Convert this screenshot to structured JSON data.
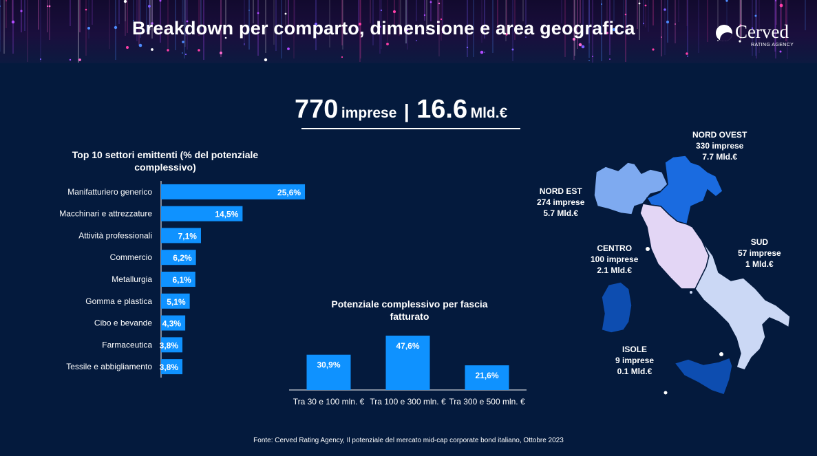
{
  "header": {
    "title": "Breakdown per comparto, dimensione e area  geografica"
  },
  "logo": {
    "name": "Cerved",
    "subtitle": "RATING AGENCY"
  },
  "headline": {
    "count": "770",
    "count_unit": "imprese",
    "separator": "|",
    "value": "16.6",
    "value_unit": "Mld.€"
  },
  "colors": {
    "background": "#041a3d",
    "bar": "#0f92ff",
    "map_dark": "#0d4db0",
    "map_mid": "#1a6be0",
    "map_light": "#7eaaf0",
    "map_pale": "#cbd8f5",
    "map_pink": "#e3d6f5"
  },
  "chart_data": [
    {
      "type": "bar",
      "orientation": "horizontal",
      "title": "Top 10 settori emittenti (% del potenziale complessivo)",
      "categories": [
        "Manifatturiero generico",
        "Macchinari e attrezzature",
        "Attività professionali",
        "Commercio",
        "Metallurgia",
        "Gomma e plastica",
        "Cibo e bevande",
        "Farmaceutica",
        "Tessile e abbigliamento"
      ],
      "values": [
        25.6,
        14.5,
        7.1,
        6.2,
        6.1,
        5.1,
        4.3,
        3.8,
        3.8
      ],
      "labels": [
        "25,6%",
        "14,5%",
        "7,1%",
        "6,2%",
        "6,1%",
        "5,1%",
        "4,3%",
        "3,8%",
        "3,8%"
      ],
      "xlim": [
        0,
        30
      ]
    },
    {
      "type": "bar",
      "orientation": "vertical",
      "title": "Potenziale complessivo per fascia fatturato",
      "categories": [
        "Tra 30 e 100 mln. €",
        "Tra 100 e 300 mln. €",
        "Tra 300 e 500 mln. €"
      ],
      "values": [
        30.9,
        47.6,
        21.6
      ],
      "labels": [
        "30,9%",
        "47,6%",
        "21,6%"
      ],
      "ylim": [
        0,
        50
      ]
    }
  ],
  "regions": [
    {
      "name": "NORD OVEST",
      "companies": "330 imprese",
      "value": "7.7 Mld.€"
    },
    {
      "name": "NORD EST",
      "companies": "274 imprese",
      "value": "5.7 Mld.€"
    },
    {
      "name": "CENTRO",
      "companies": "100 imprese",
      "value": "2.1 Mld.€"
    },
    {
      "name": "SUD",
      "companies": "57 imprese",
      "value": "1 Mld.€"
    },
    {
      "name": "ISOLE",
      "companies": "9 imprese",
      "value": "0.1 Mld.€"
    }
  ],
  "source": "Fonte: Cerved Rating Agency, Il potenziale del mercato mid-cap corporate bond italiano, Ottobre 2023"
}
